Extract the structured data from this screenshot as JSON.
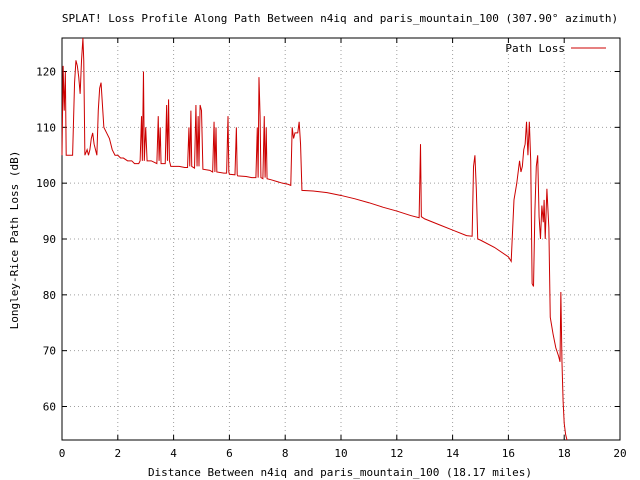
{
  "chart_data": {
    "type": "line",
    "title": "SPLAT! Loss Profile Along Path Between n4iq and paris_mountain_100 (307.90° azimuth)",
    "xlabel": "Distance Between n4iq and paris_mountain_100 (18.17 miles)",
    "ylabel": "Longley-Rice Path Loss (dB)",
    "xlim": [
      0,
      20
    ],
    "ylim": [
      54,
      126
    ],
    "x_ticks": [
      "0",
      "2",
      "4",
      "6",
      "8",
      "10",
      "12",
      "14",
      "16",
      "18",
      "20"
    ],
    "y_ticks": [
      "60",
      "70",
      "80",
      "90",
      "100",
      "110",
      "120"
    ],
    "grid": true,
    "legend_position": "top-right",
    "series": [
      {
        "name": "Path Loss",
        "color": "#cc0000",
        "points": [
          [
            0.0,
            105
          ],
          [
            0.04,
            121
          ],
          [
            0.08,
            113
          ],
          [
            0.12,
            120
          ],
          [
            0.15,
            105
          ],
          [
            0.2,
            105
          ],
          [
            0.3,
            105
          ],
          [
            0.38,
            105
          ],
          [
            0.45,
            118
          ],
          [
            0.5,
            122
          ],
          [
            0.55,
            121
          ],
          [
            0.6,
            119
          ],
          [
            0.65,
            116
          ],
          [
            0.7,
            122
          ],
          [
            0.75,
            126
          ],
          [
            0.78,
            122
          ],
          [
            0.82,
            105
          ],
          [
            0.9,
            106
          ],
          [
            0.95,
            105
          ],
          [
            1.0,
            106
          ],
          [
            1.05,
            108
          ],
          [
            1.1,
            109
          ],
          [
            1.15,
            107
          ],
          [
            1.2,
            106
          ],
          [
            1.25,
            105
          ],
          [
            1.3,
            113
          ],
          [
            1.35,
            117
          ],
          [
            1.4,
            118
          ],
          [
            1.45,
            114
          ],
          [
            1.5,
            110
          ],
          [
            1.6,
            109
          ],
          [
            1.7,
            108
          ],
          [
            1.8,
            106
          ],
          [
            1.9,
            105
          ],
          [
            2.0,
            105
          ],
          [
            2.1,
            104.5
          ],
          [
            2.2,
            104.5
          ],
          [
            2.35,
            104
          ],
          [
            2.5,
            104
          ],
          [
            2.6,
            103.5
          ],
          [
            2.75,
            103.5
          ],
          [
            2.8,
            104
          ],
          [
            2.85,
            112
          ],
          [
            2.88,
            104
          ],
          [
            2.92,
            120
          ],
          [
            2.95,
            104
          ],
          [
            3.0,
            110
          ],
          [
            3.05,
            104
          ],
          [
            3.2,
            104
          ],
          [
            3.4,
            103.5
          ],
          [
            3.45,
            112
          ],
          [
            3.48,
            104
          ],
          [
            3.52,
            110
          ],
          [
            3.55,
            103.5
          ],
          [
            3.7,
            103.5
          ],
          [
            3.75,
            114
          ],
          [
            3.78,
            104
          ],
          [
            3.82,
            115
          ],
          [
            3.85,
            104
          ],
          [
            3.9,
            103
          ],
          [
            4.2,
            103
          ],
          [
            4.4,
            102.8
          ],
          [
            4.5,
            102.8
          ],
          [
            4.55,
            110
          ],
          [
            4.58,
            103
          ],
          [
            4.62,
            113
          ],
          [
            4.65,
            103
          ],
          [
            4.75,
            102.7
          ],
          [
            4.8,
            114
          ],
          [
            4.84,
            103
          ],
          [
            4.88,
            112
          ],
          [
            4.91,
            103
          ],
          [
            4.95,
            114
          ],
          [
            5.0,
            113
          ],
          [
            5.05,
            102.5
          ],
          [
            5.3,
            102.3
          ],
          [
            5.4,
            102
          ],
          [
            5.45,
            111
          ],
          [
            5.48,
            102
          ],
          [
            5.52,
            110
          ],
          [
            5.55,
            102
          ],
          [
            5.8,
            101.8
          ],
          [
            5.9,
            101.8
          ],
          [
            5.95,
            112
          ],
          [
            5.98,
            102
          ],
          [
            6.0,
            101.6
          ],
          [
            6.2,
            101.5
          ],
          [
            6.25,
            110
          ],
          [
            6.28,
            101.5
          ],
          [
            6.3,
            101.3
          ],
          [
            6.6,
            101.2
          ],
          [
            6.8,
            101
          ],
          [
            6.95,
            101
          ],
          [
            7.0,
            110
          ],
          [
            7.03,
            101
          ],
          [
            7.06,
            119
          ],
          [
            7.1,
            112
          ],
          [
            7.13,
            101
          ],
          [
            7.2,
            100.8
          ],
          [
            7.25,
            112
          ],
          [
            7.28,
            101
          ],
          [
            7.32,
            110
          ],
          [
            7.35,
            100.8
          ],
          [
            7.5,
            100.6
          ],
          [
            7.7,
            100.3
          ],
          [
            7.9,
            100
          ],
          [
            8.1,
            99.8
          ],
          [
            8.2,
            99.6
          ],
          [
            8.25,
            110
          ],
          [
            8.3,
            108
          ],
          [
            8.35,
            109
          ],
          [
            8.45,
            109
          ],
          [
            8.5,
            111
          ],
          [
            8.55,
            107
          ],
          [
            8.6,
            98.7
          ],
          [
            9.0,
            98.6
          ],
          [
            9.5,
            98.3
          ],
          [
            10.0,
            97.8
          ],
          [
            10.5,
            97.2
          ],
          [
            11.0,
            96.5
          ],
          [
            11.5,
            95.7
          ],
          [
            12.0,
            95
          ],
          [
            12.5,
            94.2
          ],
          [
            12.8,
            93.8
          ],
          [
            12.85,
            107
          ],
          [
            12.88,
            94
          ],
          [
            13.0,
            93.6
          ],
          [
            13.5,
            92.6
          ],
          [
            14.0,
            91.6
          ],
          [
            14.5,
            90.6
          ],
          [
            14.7,
            90.5
          ],
          [
            14.75,
            103
          ],
          [
            14.8,
            105
          ],
          [
            14.85,
            99
          ],
          [
            14.9,
            90
          ],
          [
            15.0,
            89.8
          ],
          [
            15.5,
            88.5
          ],
          [
            16.0,
            86.8
          ],
          [
            16.1,
            86
          ],
          [
            16.2,
            97
          ],
          [
            16.3,
            100
          ],
          [
            16.4,
            104
          ],
          [
            16.45,
            102
          ],
          [
            16.5,
            103
          ],
          [
            16.55,
            106
          ],
          [
            16.6,
            107
          ],
          [
            16.65,
            111
          ],
          [
            16.7,
            105
          ],
          [
            16.75,
            111
          ],
          [
            16.8,
            104
          ],
          [
            16.85,
            82
          ],
          [
            16.9,
            81.5
          ],
          [
            16.95,
            95
          ],
          [
            17.0,
            103
          ],
          [
            17.05,
            105
          ],
          [
            17.1,
            94
          ],
          [
            17.15,
            90
          ],
          [
            17.2,
            96
          ],
          [
            17.25,
            93
          ],
          [
            17.28,
            97
          ],
          [
            17.32,
            90
          ],
          [
            17.38,
            99
          ],
          [
            17.45,
            92
          ],
          [
            17.5,
            76
          ],
          [
            17.6,
            73
          ],
          [
            17.7,
            70.5
          ],
          [
            17.8,
            69
          ],
          [
            17.85,
            68
          ],
          [
            17.88,
            80.5
          ],
          [
            17.92,
            68
          ],
          [
            17.96,
            61
          ],
          [
            18.0,
            57
          ],
          [
            18.05,
            55
          ],
          [
            18.1,
            54
          ]
        ]
      }
    ]
  }
}
